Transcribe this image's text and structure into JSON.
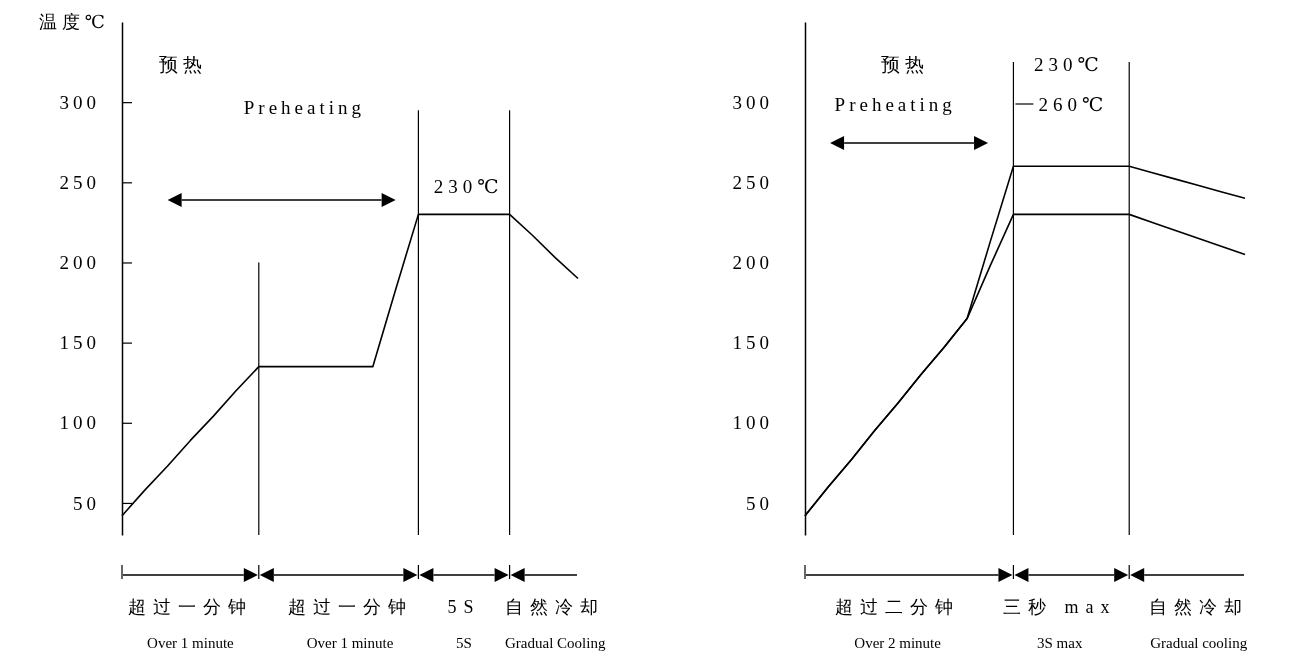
{
  "chart_data": [
    {
      "type": "line",
      "ylabel": "温度℃",
      "ylim": [
        30,
        350
      ],
      "yticks": [
        50,
        100,
        150,
        200,
        250,
        300
      ],
      "categories": [
        null,
        null,
        null,
        "超过一分钟\nOver 1 minute",
        null,
        null,
        null,
        null,
        null,
        null,
        "超过一分钟\nOver 1 minute",
        null,
        null,
        null,
        null,
        "5S\n5S",
        null,
        null,
        null,
        "自然冷却\nGradual Cooling",
        null
      ],
      "series": [
        {
          "color": "#000000",
          "values": [
            42,
            58,
            73,
            89,
            104,
            120,
            135,
            135,
            135,
            135,
            135,
            135,
            183,
            230,
            230,
            230,
            230,
            230,
            217,
            203,
            190
          ]
        }
      ],
      "annotations": [
        "预热",
        "Preheating",
        "230℃"
      ]
    },
    {
      "type": "line",
      "ylim": [
        30,
        350
      ],
      "yticks": [
        50,
        100,
        150,
        200,
        250,
        300
      ],
      "categories": [
        null,
        null,
        null,
        null,
        "超过二分钟\nOver 2 minute",
        null,
        null,
        null,
        null,
        null,
        null,
        "三秒 max\n3S max",
        null,
        null,
        null,
        null,
        null,
        "自然冷却\nGradual cooling",
        null,
        null
      ],
      "series": [
        {
          "color": "#000000",
          "values": [
            42,
            60,
            77,
            95,
            112,
            130,
            147,
            165,
            213,
            260,
            260,
            260,
            260,
            260,
            260,
            256,
            252,
            248,
            244,
            240
          ]
        },
        {
          "color": "#000000",
          "values": [
            42,
            60,
            77,
            95,
            112,
            130,
            147,
            165,
            198,
            230,
            230,
            230,
            230,
            230,
            230,
            225,
            220,
            215,
            210,
            205
          ]
        }
      ],
      "annotations": [
        "预热",
        "Preheating",
        "230℃",
        "260℃"
      ]
    }
  ]
}
